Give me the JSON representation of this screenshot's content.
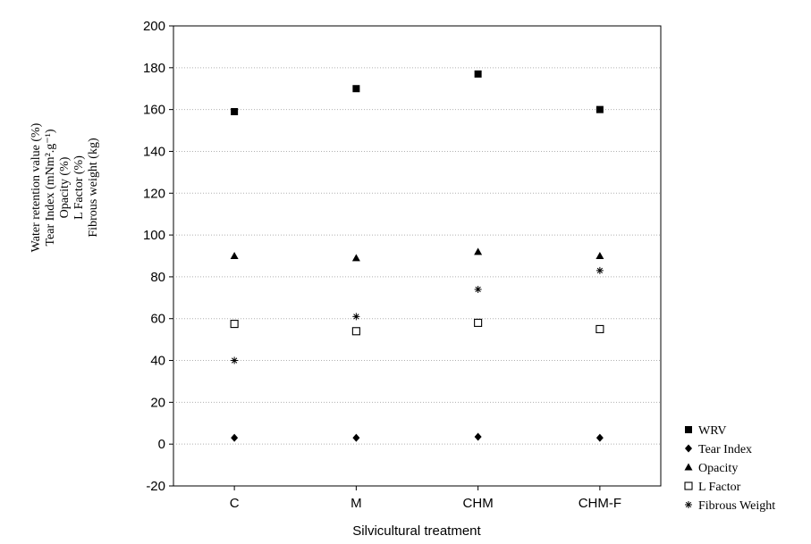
{
  "chart_data": {
    "type": "scatter",
    "categories": [
      "C",
      "M",
      "CHM",
      "CHM-F"
    ],
    "xlabel": "Silvicultural treatment",
    "ylabel_lines": [
      "Water retention value (%)",
      "Tear Index (mNm².g⁻¹)",
      "Opacity (%)",
      "L Factor (%)",
      "Fibrous weight (kg)"
    ],
    "ylim": [
      -20,
      200
    ],
    "yticks": [
      -20,
      0,
      20,
      40,
      60,
      80,
      100,
      120,
      140,
      160,
      180,
      200
    ],
    "grid": true,
    "legend_position": "bottom-right",
    "series": [
      {
        "name": "WRV",
        "marker": "filled-square",
        "values": [
          159,
          170,
          177,
          160
        ]
      },
      {
        "name": "Tear Index",
        "marker": "filled-diamond",
        "values": [
          3,
          3,
          3.5,
          3
        ]
      },
      {
        "name": "Opacity",
        "marker": "filled-triangle",
        "values": [
          90,
          89,
          92,
          90
        ]
      },
      {
        "name": "L Factor",
        "marker": "open-square",
        "values": [
          57.5,
          54,
          58,
          55
        ]
      },
      {
        "name": "Fibrous Weight",
        "marker": "asterisk",
        "values": [
          40,
          61,
          74,
          83
        ]
      }
    ]
  }
}
